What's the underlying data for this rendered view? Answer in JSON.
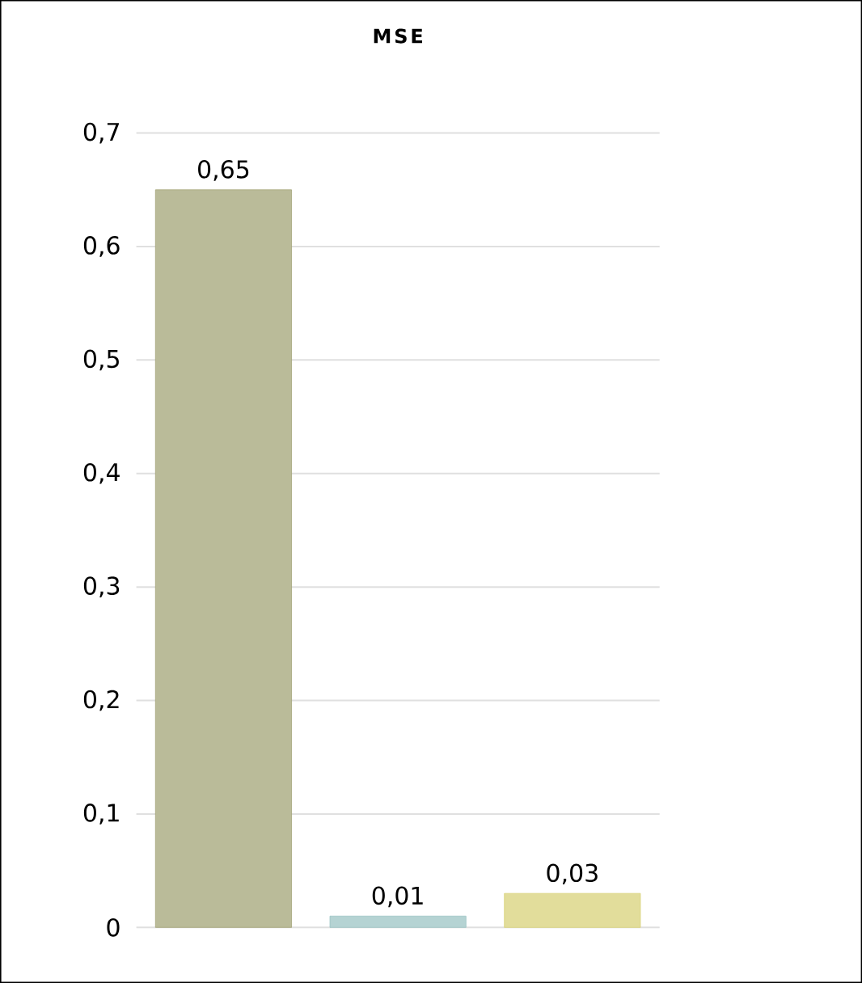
{
  "chart_data": {
    "type": "bar",
    "title": "MSE",
    "categories": [
      null,
      null,
      null
    ],
    "values": [
      0.65,
      0.01,
      0.03
    ],
    "value_labels": [
      "0,65",
      "0,01",
      "0,03"
    ],
    "colors": [
      "#a3a477",
      "#9cc4c4",
      "#d9d27a"
    ],
    "ylim": [
      0,
      0.7
    ],
    "yticks": [
      {
        "value": 0,
        "label": "0"
      },
      {
        "value": 0.1,
        "label": "0,1"
      },
      {
        "value": 0.2,
        "label": "0,2"
      },
      {
        "value": 0.3,
        "label": "0,3"
      },
      {
        "value": 0.4,
        "label": "0,4"
      },
      {
        "value": 0.5,
        "label": "0,5"
      },
      {
        "value": 0.6,
        "label": "0,6"
      },
      {
        "value": 0.7,
        "label": "0,7"
      }
    ],
    "grid": "y"
  }
}
